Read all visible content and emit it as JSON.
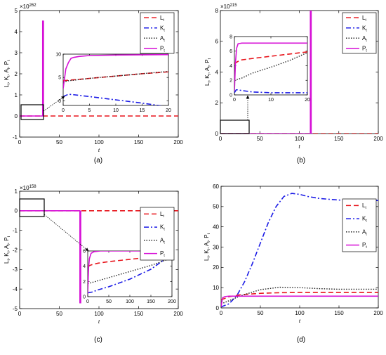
{
  "colors": {
    "L": "#e8141b",
    "K": "#1a1ae6",
    "A": "#222222",
    "P": "#d60fd6"
  },
  "chart_data": [
    {
      "panel": "(a)",
      "type": "line",
      "exponent": "262",
      "ylabel": "L_t, K_t, A_t, P_t",
      "xlabel": "t",
      "xlim": [
        0,
        200
      ],
      "ylim": [
        -1,
        5
      ],
      "xticks": [
        0,
        50,
        100,
        150,
        200
      ],
      "yticks": [
        -1,
        0,
        1,
        2,
        3,
        4,
        5
      ],
      "legend_position": "top-right",
      "legend": [
        "L_t",
        "K_t",
        "A_t",
        "P_t"
      ],
      "series": [
        {
          "name": "L_t",
          "x": [
            0,
            200
          ],
          "y": [
            0,
            0
          ]
        },
        {
          "name": "P_t",
          "x": [
            0,
            29,
            29,
            30,
            30,
            31
          ],
          "y": [
            0,
            0,
            4.5,
            4.5,
            0,
            0
          ]
        }
      ],
      "inset": {
        "xlim": [
          0,
          20
        ],
        "ylim": [
          -1,
          10
        ],
        "xticks": [
          0,
          5,
          10,
          15,
          20
        ],
        "yticks": [
          0,
          5,
          10
        ],
        "series": [
          {
            "name": "L_t",
            "x": [
              0,
              1,
              2,
              5,
              10,
              15,
              20
            ],
            "y": [
              4.3,
              4.4,
              4.5,
              4.8,
              5.3,
              5.8,
              6.2
            ]
          },
          {
            "name": "K_t",
            "x": [
              0,
              1,
              2,
              5,
              10,
              15,
              20
            ],
            "y": [
              0.9,
              1.4,
              1.3,
              0.9,
              0.2,
              -0.5,
              -1.3
            ]
          },
          {
            "name": "A_t",
            "x": [
              0,
              1,
              2,
              5,
              10,
              15,
              20
            ],
            "y": [
              4,
              4.3,
              4.4,
              4.8,
              5.3,
              5.8,
              6.3
            ]
          },
          {
            "name": "P_t",
            "x": [
              0,
              0.5,
              1,
              1.5,
              2,
              3,
              5,
              10,
              20
            ],
            "y": [
              2.6,
              6.8,
              8.2,
              9.1,
              9.3,
              9.5,
              9.7,
              9.8,
              9.9
            ]
          }
        ]
      }
    },
    {
      "panel": "(b)",
      "type": "line",
      "exponent": "215",
      "ylabel": "L_t, K_t, A_t, P_t",
      "xlabel": "t",
      "xlim": [
        0,
        200
      ],
      "ylim": [
        0,
        8
      ],
      "xticks": [
        0,
        50,
        100,
        150,
        200
      ],
      "yticks": [
        0,
        2,
        4,
        6,
        8
      ],
      "legend_position": "top-right",
      "legend": [
        "L_t",
        "K_t",
        "A_t",
        "P_t"
      ],
      "series": [
        {
          "name": "L_t",
          "x": [
            0,
            200
          ],
          "y": [
            0,
            0
          ]
        },
        {
          "name": "P_t",
          "x": [
            0,
            114,
            114,
            115,
            115,
            117
          ],
          "y": [
            0,
            0,
            8,
            8,
            0,
            0
          ]
        }
      ],
      "inset": {
        "xlim": [
          0,
          20
        ],
        "ylim": [
          0,
          8
        ],
        "xticks": [
          0,
          10,
          20
        ],
        "yticks": [
          0,
          2,
          4,
          6,
          8
        ],
        "series": [
          {
            "name": "L_t",
            "x": [
              0,
              1,
              2,
              5,
              10,
              15,
              20
            ],
            "y": [
              4.3,
              4.6,
              4.8,
              5.0,
              5.3,
              5.6,
              5.9
            ]
          },
          {
            "name": "K_t",
            "x": [
              0,
              0.5,
              1,
              2,
              5,
              10,
              15,
              20
            ],
            "y": [
              0.3,
              0.7,
              0.7,
              0.6,
              0.4,
              0.3,
              0.3,
              0.3
            ]
          },
          {
            "name": "A_t",
            "x": [
              0,
              2,
              5,
              10,
              15,
              20
            ],
            "y": [
              2.0,
              2.3,
              3.0,
              3.8,
              4.7,
              5.8
            ]
          },
          {
            "name": "P_t",
            "x": [
              0,
              0.3,
              0.6,
              1,
              2,
              5,
              10,
              20
            ],
            "y": [
              0.5,
              4.5,
              6.4,
              7.0,
              7.1,
              7.1,
              7.1,
              7.1
            ]
          }
        ]
      }
    },
    {
      "panel": "(c)",
      "type": "line",
      "exponent": "158",
      "ylabel": "L_t, K_t, A_t, P_t",
      "xlabel": "t",
      "xlim": [
        0,
        200
      ],
      "ylim": [
        -5,
        1
      ],
      "xticks": [
        0,
        50,
        100,
        150,
        200
      ],
      "yticks": [
        -5,
        -4,
        -3,
        -2,
        -1,
        0,
        1
      ],
      "legend_position": "right",
      "legend": [
        "L_t",
        "K_t",
        "A_t",
        "P_t"
      ],
      "series": [
        {
          "name": "L_t",
          "x": [
            0,
            200
          ],
          "y": [
            0,
            0
          ]
        },
        {
          "name": "P_t",
          "x": [
            0,
            76,
            76,
            77,
            77
          ],
          "y": [
            0,
            0,
            -4.7,
            -4.7,
            0
          ]
        }
      ],
      "inset": {
        "xlim": [
          0,
          200
        ],
        "ylim": [
          0,
          6
        ],
        "xticks": [
          0,
          50,
          100,
          150,
          200
        ],
        "yticks": [
          0,
          2,
          4,
          6
        ],
        "series": [
          {
            "name": "L_t",
            "x": [
              0,
              10,
              25,
              50,
              100,
              150,
              200
            ],
            "y": [
              4.0,
              4.2,
              4.4,
              4.6,
              4.9,
              5.2,
              5.6
            ]
          },
          {
            "name": "K_t",
            "x": [
              0,
              10,
              25,
              50,
              75,
              100,
              150,
              200
            ],
            "y": [
              0.5,
              0.6,
              0.9,
              1.3,
              1.8,
              2.3,
              3.6,
              5.6
            ]
          },
          {
            "name": "A_t",
            "x": [
              0,
              25,
              50,
              100,
              150,
              200
            ],
            "y": [
              1.7,
              2.1,
              2.5,
              3.3,
              4.1,
              5.1
            ]
          },
          {
            "name": "P_t",
            "x": [
              0,
              2,
              4,
              8,
              15,
              30,
              100,
              200
            ],
            "y": [
              0.3,
              3.8,
              5.0,
              5.7,
              5.9,
              6.0,
              6.0,
              6.0
            ]
          }
        ]
      }
    },
    {
      "panel": "(d)",
      "type": "line",
      "ylabel": "L_t, K_t, A_t, P_t",
      "xlabel": "t",
      "xlim": [
        0,
        200
      ],
      "ylim": [
        0,
        60
      ],
      "xticks": [
        0,
        50,
        100,
        150,
        200
      ],
      "yticks": [
        0,
        10,
        20,
        30,
        40,
        50,
        60
      ],
      "legend_position": "right",
      "legend": [
        "L_t",
        "K_t",
        "A_t",
        "P_t"
      ],
      "series": [
        {
          "name": "L_t",
          "x": [
            0,
            10,
            25,
            50,
            75,
            100,
            150,
            200
          ],
          "y": [
            4,
            5.5,
            6.5,
            7.2,
            7.5,
            7.6,
            7.6,
            7.6
          ]
        },
        {
          "name": "K_t",
          "x": [
            0,
            10,
            20,
            30,
            40,
            50,
            60,
            70,
            80,
            90,
            100,
            110,
            125,
            150,
            175,
            200
          ],
          "y": [
            0.5,
            2,
            6,
            13,
            22,
            32,
            42,
            50,
            55,
            56.5,
            56,
            55,
            54,
            53.2,
            53,
            53
          ]
        },
        {
          "name": "A_t",
          "x": [
            0,
            10,
            25,
            50,
            75,
            100,
            125,
            150,
            200
          ],
          "y": [
            2,
            3.5,
            6,
            9,
            10.2,
            10,
            9.5,
            9.2,
            9.2
          ]
        },
        {
          "name": "P_t",
          "x": [
            0,
            1,
            2,
            5,
            10,
            50,
            100,
            150,
            200
          ],
          "y": [
            0.5,
            3,
            5,
            5.6,
            5.8,
            5.8,
            5.8,
            5.8,
            5.8
          ]
        }
      ]
    }
  ]
}
